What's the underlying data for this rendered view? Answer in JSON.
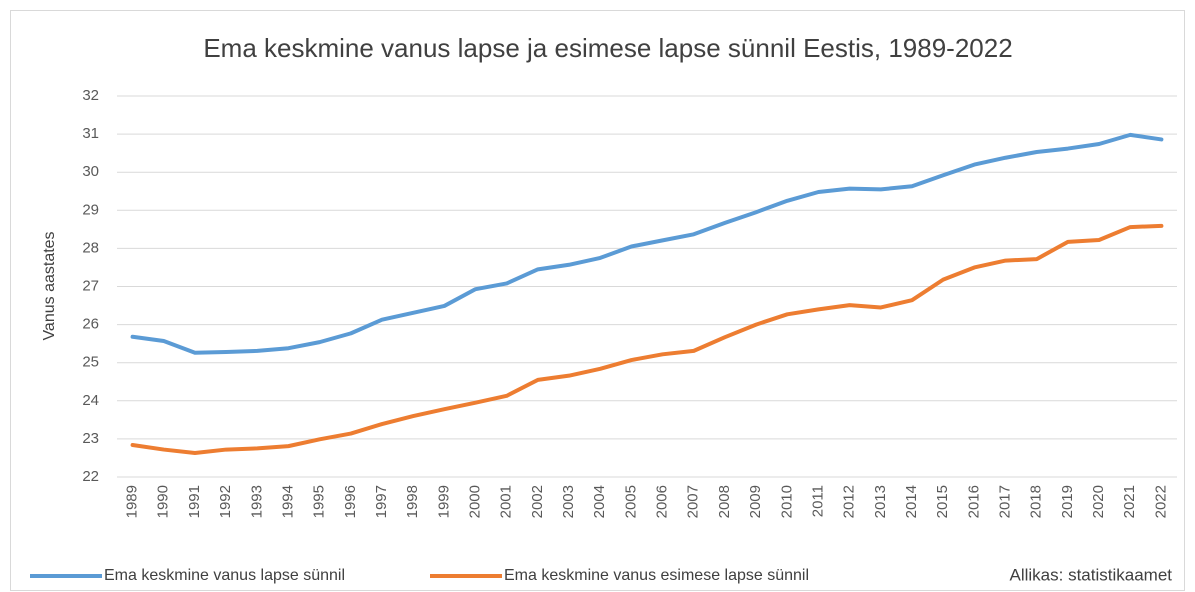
{
  "chart_data": {
    "type": "line",
    "title": "Ema keskmine vanus lapse ja esimese lapse sünnil Eestis, 1989-2022",
    "y_label": "Vanus aastates",
    "annotation": "Allikas: statistikaamet",
    "categories": [
      "1989",
      "1990",
      "1991",
      "1992",
      "1993",
      "1994",
      "1995",
      "1996",
      "1997",
      "1998",
      "1999",
      "2000",
      "2001",
      "2002",
      "2003",
      "2004",
      "2005",
      "2006",
      "2007",
      "2008",
      "2009",
      "2010",
      "2011",
      "2012",
      "2013",
      "2014",
      "2015",
      "2016",
      "2017",
      "2018",
      "2019",
      "2020",
      "2021",
      "2022"
    ],
    "series": [
      {
        "name": "Ema keskmine vanus lapse sünnil",
        "color": "#5b9bd5",
        "values": [
          25.68,
          25.57,
          25.26,
          25.28,
          25.31,
          25.38,
          25.54,
          25.77,
          26.13,
          26.31,
          26.49,
          26.93,
          27.08,
          27.45,
          27.57,
          27.75,
          28.05,
          28.21,
          28.37,
          28.67,
          28.95,
          29.25,
          29.48,
          29.57,
          29.55,
          29.63,
          29.92,
          30.2,
          30.38,
          30.53,
          30.62,
          30.74,
          30.98,
          30.86
        ]
      },
      {
        "name": "Ema keskmine vanus esimese lapse sünnil",
        "color": "#ed7d31",
        "values": [
          22.84,
          22.72,
          22.63,
          22.72,
          22.75,
          22.81,
          22.99,
          23.14,
          23.39,
          23.6,
          23.78,
          23.95,
          24.13,
          24.55,
          24.66,
          24.84,
          25.07,
          25.22,
          25.31,
          25.67,
          26.0,
          26.27,
          26.4,
          26.51,
          26.45,
          26.64,
          27.18,
          27.5,
          27.68,
          27.72,
          28.17,
          28.22,
          28.56,
          28.59
        ]
      }
    ],
    "ylim": [
      22,
      32
    ],
    "yticks": [
      22,
      23,
      24,
      25,
      26,
      27,
      28,
      29,
      30,
      31,
      32
    ],
    "grid": true,
    "legend": "bottom"
  }
}
